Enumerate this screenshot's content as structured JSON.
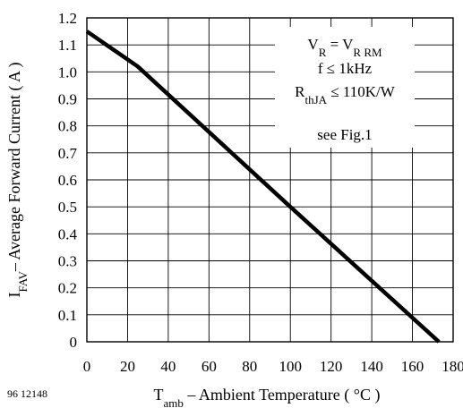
{
  "chart_data": {
    "type": "line",
    "figure_id": "96 12148",
    "xlabel": {
      "main": "T",
      "sub": "amb",
      "rest": " – Ambient Temperature ( °C )"
    },
    "ylabel": {
      "main": "I",
      "sub": "FAV",
      "rest": "– Average Forward Current ( A )"
    },
    "xlim": [
      0,
      180
    ],
    "ylim": [
      0,
      1.2
    ],
    "x_ticks": [
      "0",
      "20",
      "40",
      "60",
      "80",
      "100",
      "120",
      "140",
      "160",
      "180"
    ],
    "y_ticks": [
      "0",
      "0.1",
      "0.2",
      "0.3",
      "0.4",
      "0.5",
      "0.6",
      "0.7",
      "0.8",
      "0.9",
      "1.0",
      "1.1",
      "1.2"
    ],
    "x_tick_values": [
      0,
      20,
      40,
      60,
      80,
      100,
      120,
      140,
      160,
      180
    ],
    "y_tick_values": [
      0,
      0.1,
      0.2,
      0.3,
      0.4,
      0.5,
      0.6,
      0.7,
      0.8,
      0.9,
      1.0,
      1.1,
      1.2
    ],
    "grid": true,
    "series": [
      {
        "x": [
          0,
          25,
          100,
          173
        ],
        "y": [
          1.15,
          1.02,
          0.5,
          0.0
        ]
      }
    ],
    "annotation": {
      "vr_main": "V",
      "vr_sub": "R",
      "vr_eq": " = V",
      "vr_rrm_sub": "R RM",
      "freq": "f ≤ 1kHz",
      "rth_main": "R",
      "rth_sub": "thJA",
      "rth_rest": " ≤ 110K/W",
      "see": "see Fig.1"
    },
    "colors": {
      "line": "#000000",
      "grid": "#000000",
      "background": "#ffffff"
    }
  }
}
